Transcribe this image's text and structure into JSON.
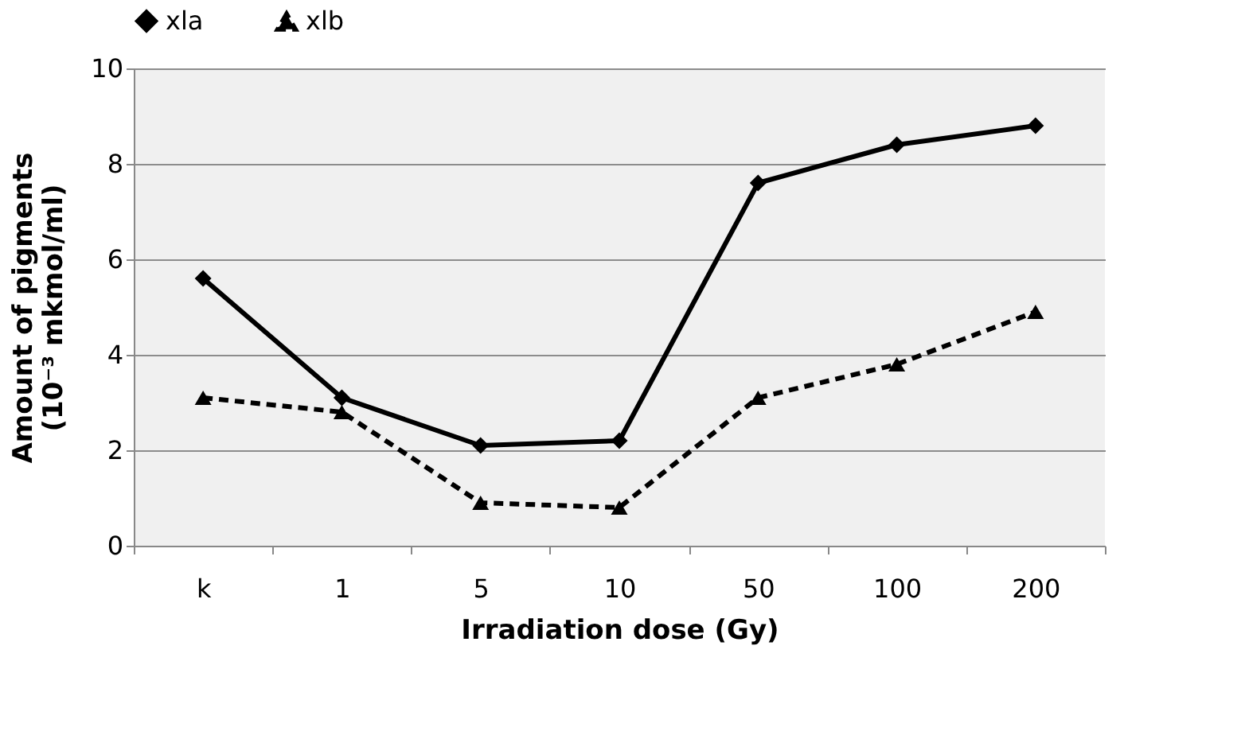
{
  "chart_data": {
    "type": "line",
    "xlabel": "Irradiation dose (Gy)",
    "ylabel": "Amount of pigments\n(10⁻³ mkmol/ml)",
    "categories": [
      "k",
      "1",
      "5",
      "10",
      "50",
      "100",
      "200"
    ],
    "series": [
      {
        "name": "xla",
        "color": "#000000",
        "marker": "diamond",
        "line_style": "solid",
        "values": [
          5.6,
          3.1,
          2.1,
          2.2,
          7.6,
          8.4,
          8.8
        ]
      },
      {
        "name": "xlb",
        "color": "#000000",
        "marker": "triangle",
        "line_style": "dashed",
        "values": [
          3.1,
          2.8,
          0.9,
          0.8,
          3.1,
          3.8,
          4.9
        ]
      }
    ],
    "ylim": [
      0,
      10
    ],
    "yticks": [
      0,
      2,
      4,
      6,
      8,
      10
    ],
    "grid": "y",
    "legend": "top"
  }
}
